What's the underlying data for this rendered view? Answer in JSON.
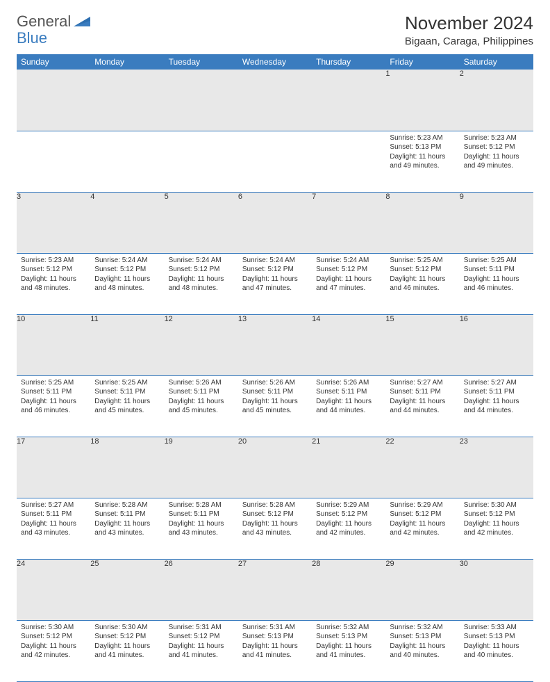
{
  "logo": {
    "text1": "General",
    "text2": "Blue",
    "color_general": "#555555",
    "color_blue": "#3a7cbf"
  },
  "title": "November 2024",
  "location": "Bigaan, Caraga, Philippines",
  "header_bg": "#3a7cbf",
  "daynum_bg": "#e8e8e8",
  "border_color": "#3a7cbf",
  "weekdays": [
    "Sunday",
    "Monday",
    "Tuesday",
    "Wednesday",
    "Thursday",
    "Friday",
    "Saturday"
  ],
  "weeks": [
    [
      null,
      null,
      null,
      null,
      null,
      {
        "n": "1",
        "sr": "5:23 AM",
        "ss": "5:13 PM",
        "dl": "11 hours and 49 minutes."
      },
      {
        "n": "2",
        "sr": "5:23 AM",
        "ss": "5:12 PM",
        "dl": "11 hours and 49 minutes."
      }
    ],
    [
      {
        "n": "3",
        "sr": "5:23 AM",
        "ss": "5:12 PM",
        "dl": "11 hours and 48 minutes."
      },
      {
        "n": "4",
        "sr": "5:24 AM",
        "ss": "5:12 PM",
        "dl": "11 hours and 48 minutes."
      },
      {
        "n": "5",
        "sr": "5:24 AM",
        "ss": "5:12 PM",
        "dl": "11 hours and 48 minutes."
      },
      {
        "n": "6",
        "sr": "5:24 AM",
        "ss": "5:12 PM",
        "dl": "11 hours and 47 minutes."
      },
      {
        "n": "7",
        "sr": "5:24 AM",
        "ss": "5:12 PM",
        "dl": "11 hours and 47 minutes."
      },
      {
        "n": "8",
        "sr": "5:25 AM",
        "ss": "5:12 PM",
        "dl": "11 hours and 46 minutes."
      },
      {
        "n": "9",
        "sr": "5:25 AM",
        "ss": "5:11 PM",
        "dl": "11 hours and 46 minutes."
      }
    ],
    [
      {
        "n": "10",
        "sr": "5:25 AM",
        "ss": "5:11 PM",
        "dl": "11 hours and 46 minutes."
      },
      {
        "n": "11",
        "sr": "5:25 AM",
        "ss": "5:11 PM",
        "dl": "11 hours and 45 minutes."
      },
      {
        "n": "12",
        "sr": "5:26 AM",
        "ss": "5:11 PM",
        "dl": "11 hours and 45 minutes."
      },
      {
        "n": "13",
        "sr": "5:26 AM",
        "ss": "5:11 PM",
        "dl": "11 hours and 45 minutes."
      },
      {
        "n": "14",
        "sr": "5:26 AM",
        "ss": "5:11 PM",
        "dl": "11 hours and 44 minutes."
      },
      {
        "n": "15",
        "sr": "5:27 AM",
        "ss": "5:11 PM",
        "dl": "11 hours and 44 minutes."
      },
      {
        "n": "16",
        "sr": "5:27 AM",
        "ss": "5:11 PM",
        "dl": "11 hours and 44 minutes."
      }
    ],
    [
      {
        "n": "17",
        "sr": "5:27 AM",
        "ss": "5:11 PM",
        "dl": "11 hours and 43 minutes."
      },
      {
        "n": "18",
        "sr": "5:28 AM",
        "ss": "5:11 PM",
        "dl": "11 hours and 43 minutes."
      },
      {
        "n": "19",
        "sr": "5:28 AM",
        "ss": "5:11 PM",
        "dl": "11 hours and 43 minutes."
      },
      {
        "n": "20",
        "sr": "5:28 AM",
        "ss": "5:12 PM",
        "dl": "11 hours and 43 minutes."
      },
      {
        "n": "21",
        "sr": "5:29 AM",
        "ss": "5:12 PM",
        "dl": "11 hours and 42 minutes."
      },
      {
        "n": "22",
        "sr": "5:29 AM",
        "ss": "5:12 PM",
        "dl": "11 hours and 42 minutes."
      },
      {
        "n": "23",
        "sr": "5:30 AM",
        "ss": "5:12 PM",
        "dl": "11 hours and 42 minutes."
      }
    ],
    [
      {
        "n": "24",
        "sr": "5:30 AM",
        "ss": "5:12 PM",
        "dl": "11 hours and 42 minutes."
      },
      {
        "n": "25",
        "sr": "5:30 AM",
        "ss": "5:12 PM",
        "dl": "11 hours and 41 minutes."
      },
      {
        "n": "26",
        "sr": "5:31 AM",
        "ss": "5:12 PM",
        "dl": "11 hours and 41 minutes."
      },
      {
        "n": "27",
        "sr": "5:31 AM",
        "ss": "5:13 PM",
        "dl": "11 hours and 41 minutes."
      },
      {
        "n": "28",
        "sr": "5:32 AM",
        "ss": "5:13 PM",
        "dl": "11 hours and 41 minutes."
      },
      {
        "n": "29",
        "sr": "5:32 AM",
        "ss": "5:13 PM",
        "dl": "11 hours and 40 minutes."
      },
      {
        "n": "30",
        "sr": "5:33 AM",
        "ss": "5:13 PM",
        "dl": "11 hours and 40 minutes."
      }
    ]
  ],
  "labels": {
    "sunrise": "Sunrise:",
    "sunset": "Sunset:",
    "daylight": "Daylight:"
  }
}
